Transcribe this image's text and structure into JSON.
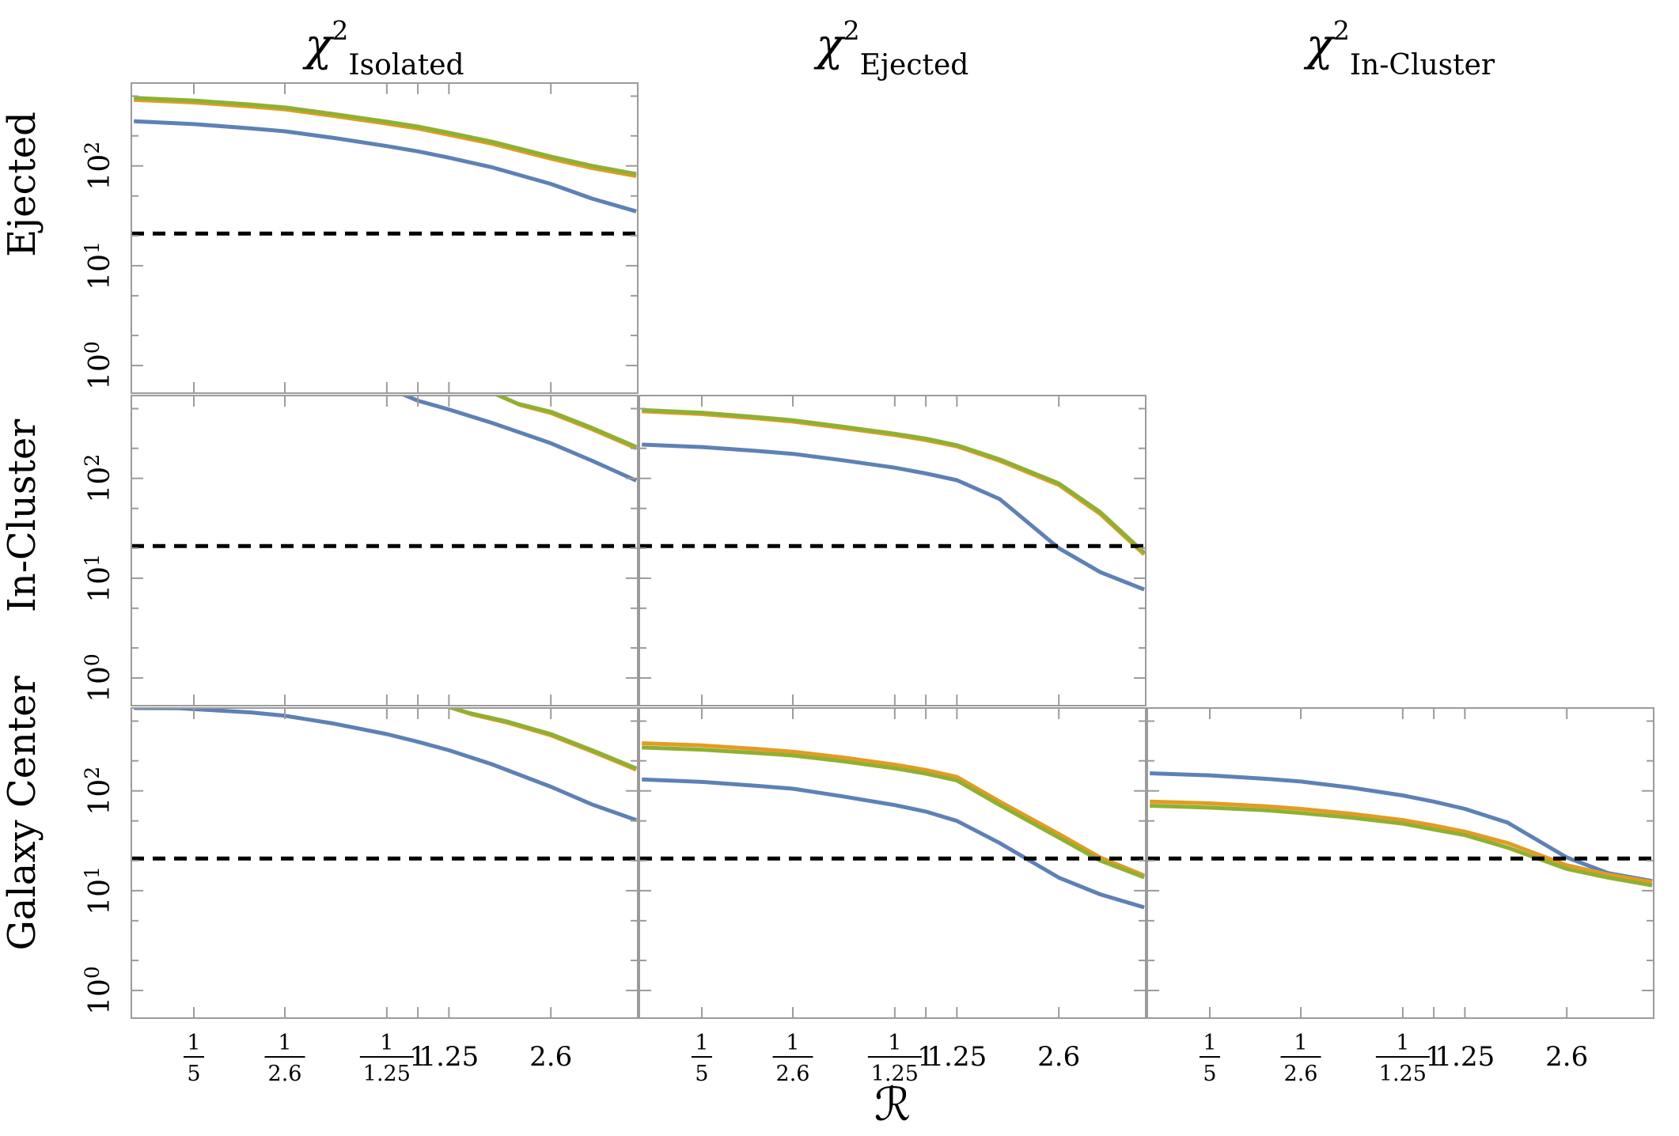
{
  "figure": {
    "background": "#ffffff",
    "x_axis_label": "ℛ",
    "column_titles": [
      {
        "symbol": "χ",
        "sup": "2",
        "sub": "Isolated"
      },
      {
        "symbol": "χ",
        "sup": "2",
        "sub": "Ejected"
      },
      {
        "symbol": "χ",
        "sup": "2",
        "sub": "In-Cluster"
      }
    ],
    "row_labels": [
      "Ejected",
      "In-Cluster",
      "Galaxy Center"
    ],
    "x_tick_labels": [
      "1/5",
      "1/2.6",
      "1/1.25",
      "1",
      "1.25",
      "2.6"
    ],
    "x_tick_values": [
      0.2,
      0.3846,
      0.8,
      1,
      1.25,
      2.6
    ],
    "y_tick_labels": [
      {
        "base": "10",
        "exp": "0"
      },
      {
        "base": "10",
        "exp": "1"
      },
      {
        "base": "10",
        "exp": "2"
      }
    ],
    "y_tick_values": [
      1,
      10,
      100
    ],
    "y_minor_tick_values": [
      2,
      5,
      20,
      50,
      200,
      500
    ],
    "colors": {
      "blue": "#5e81b5",
      "orange": "#e19c24",
      "green": "#8fb032",
      "threshold": "#000000",
      "frame": "#9b9b9b"
    },
    "threshold": {
      "value": 21,
      "style": "dashed"
    }
  },
  "chart_data": [
    {
      "type": "line",
      "row_label": "Ejected",
      "col_label": "Isolated",
      "row_index": 0,
      "col_index": 0,
      "x_scale": "log",
      "y_scale": "log",
      "xlim": [
        0.128,
        4.85
      ],
      "ylim": [
        0.53,
        676
      ],
      "threshold_y": 21,
      "x": [
        0.13,
        0.2,
        0.3,
        0.385,
        0.55,
        0.8,
        1,
        1.25,
        1.7,
        2.6,
        3.5,
        4.8
      ],
      "series": [
        {
          "name": "blue",
          "color_key": "blue",
          "chi2": [
            280,
            262,
            238,
            222,
            190,
            158,
            140,
            121,
            97,
            66,
            47,
            35
          ]
        },
        {
          "name": "orange",
          "color_key": "orange",
          "chi2": [
            458,
            432,
            394,
            368,
            315,
            265,
            237,
            205,
            167,
            118,
            95,
            79
          ]
        },
        {
          "name": "green",
          "color_key": "green",
          "chi2": [
            480,
            452,
            412,
            385,
            330,
            277,
            248,
            215,
            175,
            124,
            100,
            83
          ]
        }
      ]
    },
    {
      "type": "line",
      "row_label": "In-Cluster",
      "col_label": "Isolated",
      "row_index": 1,
      "col_index": 0,
      "x_scale": "log",
      "y_scale": "log",
      "xlim": [
        0.128,
        4.85
      ],
      "ylim": [
        0.53,
        676
      ],
      "threshold_y": 21,
      "series": [
        {
          "name": "blue",
          "color_key": "blue",
          "x": [
            0.78,
            1,
            1.25,
            1.7,
            2.6,
            3.5,
            4.8
          ],
          "chi2": [
            840,
            600,
            490,
            360,
            225,
            150,
            95
          ]
        },
        {
          "name": "orange",
          "color_key": "orange",
          "x": [
            1.48,
            2.08,
            2.6,
            3.5,
            4.8
          ],
          "chi2": [
            900,
            545,
            452,
            310,
            200
          ]
        },
        {
          "name": "green",
          "color_key": "green",
          "x": [
            1.45,
            2.05,
            2.6,
            3.5,
            4.8
          ],
          "chi2": [
            900,
            560,
            465,
            320,
            207
          ]
        }
      ]
    },
    {
      "type": "line",
      "row_label": "In-Cluster",
      "col_label": "Ejected",
      "row_index": 1,
      "col_index": 1,
      "x_scale": "log",
      "y_scale": "log",
      "xlim": [
        0.128,
        4.85
      ],
      "ylim": [
        0.53,
        676
      ],
      "threshold_y": 21,
      "x": [
        0.13,
        0.2,
        0.3,
        0.385,
        0.55,
        0.8,
        1,
        1.25,
        1.7,
        2.6,
        3.5,
        4.8
      ],
      "series": [
        {
          "name": "blue",
          "color_key": "blue",
          "chi2": [
            218,
            206,
            188,
            176,
            152,
            128,
            112,
            96,
            62,
            20,
            11.5,
            7.7
          ]
        },
        {
          "name": "orange",
          "color_key": "orange",
          "chi2": [
            470,
            441,
            398,
            371,
            320,
            272,
            242,
            209,
            150,
            86,
            44,
            17.3
          ]
        },
        {
          "name": "green",
          "color_key": "green",
          "chi2": [
            485,
            455,
            410,
            382,
            330,
            280,
            250,
            215,
            155,
            89,
            46,
            18
          ]
        }
      ]
    },
    {
      "type": "line",
      "row_label": "Galaxy Center",
      "col_label": "Isolated",
      "row_index": 2,
      "col_index": 0,
      "x_scale": "log",
      "y_scale": "log",
      "xlim": [
        0.128,
        4.85
      ],
      "ylim": [
        0.53,
        676
      ],
      "threshold_y": 21,
      "series": [
        {
          "name": "blue",
          "color_key": "blue",
          "x": [
            0.13,
            0.18,
            0.3,
            0.385,
            0.55,
            0.8,
            1,
            1.25,
            1.7,
            2.6,
            3.5,
            4.8
          ],
          "chi2": [
            676,
            672,
            612,
            565,
            470,
            370,
            310,
            255,
            185,
            110,
            73,
            51
          ]
        },
        {
          "name": "orange",
          "color_key": "orange",
          "x": [
            0.97,
            1.47,
            1.9,
            2.6,
            3.5,
            4.8
          ],
          "chi2": [
            900,
            585,
            482,
            360,
            248,
            163
          ]
        },
        {
          "name": "green",
          "color_key": "green",
          "x": [
            0.95,
            1.45,
            1.9,
            2.6,
            3.5,
            4.8
          ],
          "chi2": [
            900,
            600,
            495,
            370,
            255,
            168
          ]
        }
      ]
    },
    {
      "type": "line",
      "row_label": "Galaxy Center",
      "col_label": "Ejected",
      "row_index": 2,
      "col_index": 1,
      "x_scale": "log",
      "y_scale": "log",
      "xlim": [
        0.128,
        4.85
      ],
      "ylim": [
        0.53,
        676
      ],
      "threshold_y": 21,
      "x": [
        0.13,
        0.2,
        0.3,
        0.385,
        0.55,
        0.8,
        1,
        1.25,
        1.7,
        2.6,
        3.5,
        4.8
      ],
      "series": [
        {
          "name": "blue",
          "color_key": "blue",
          "chi2": [
            130,
            123,
            112,
            105,
            88,
            72,
            62,
            50,
            30,
            13.5,
            9.2,
            6.8
          ]
        },
        {
          "name": "orange",
          "color_key": "orange",
          "chi2": [
            300,
            285,
            262,
            247,
            216,
            183,
            162,
            138,
            78,
            37,
            21.5,
            14.2
          ]
        },
        {
          "name": "green",
          "color_key": "green",
          "chi2": [
            272,
            259,
            239,
            226,
            198,
            168,
            149,
            127,
            72,
            34,
            20,
            13.6
          ]
        }
      ]
    },
    {
      "type": "line",
      "row_label": "Galaxy Center",
      "col_label": "In-Cluster",
      "row_index": 2,
      "col_index": 2,
      "x_scale": "log",
      "y_scale": "log",
      "xlim": [
        0.128,
        4.85
      ],
      "ylim": [
        0.53,
        676
      ],
      "threshold_y": 21,
      "x": [
        0.13,
        0.2,
        0.3,
        0.385,
        0.55,
        0.8,
        1,
        1.25,
        1.7,
        2.6,
        3.5,
        4.8
      ],
      "series": [
        {
          "name": "blue",
          "color_key": "blue",
          "chi2": [
            150,
            143,
            132,
            124,
            108,
            90,
            78,
            66,
            48,
            21.5,
            15,
            12.5
          ]
        },
        {
          "name": "orange",
          "color_key": "orange",
          "chi2": [
            78,
            75,
            70,
            66,
            59,
            51,
            45,
            39,
            30,
            18,
            14.5,
            12.2
          ]
        },
        {
          "name": "green",
          "color_key": "green",
          "chi2": [
            71,
            68,
            64,
            60,
            54,
            47,
            41,
            36,
            27,
            16.5,
            13.5,
            11.3
          ]
        }
      ]
    }
  ]
}
